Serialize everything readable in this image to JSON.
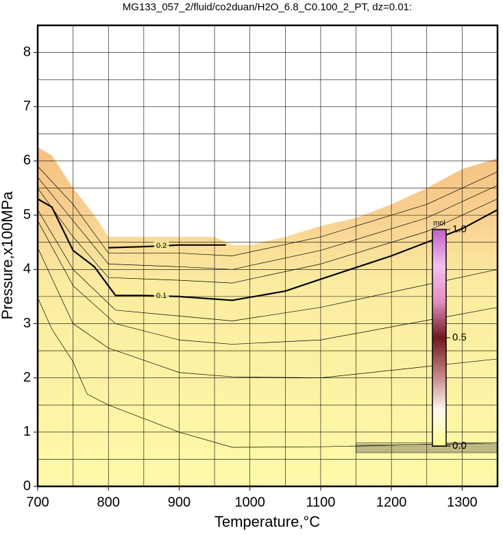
{
  "chart_data": {
    "type": "contour",
    "title": "MG133_057_2/fluid/co2duan/H2O_6.8_C0.100_2_PT, dz=0.01:",
    "x_label": "Temperature,°C",
    "y_label": "Pressure,x100MPa",
    "xlim": [
      700,
      1350
    ],
    "ylim": [
      0,
      8.5
    ],
    "xticks": [
      700,
      800,
      900,
      1000,
      1100,
      1200,
      1300
    ],
    "yticks": [
      0,
      1,
      2,
      3,
      4,
      5,
      6,
      7,
      8
    ],
    "xgrid": [
      700,
      750,
      800,
      850,
      900,
      950,
      1000,
      1050,
      1100,
      1150,
      1200,
      1250,
      1300,
      1350
    ],
    "ygrid": [
      0,
      0.5,
      1,
      1.5,
      2,
      2.5,
      3,
      3.5,
      4,
      4.5,
      5,
      5.5,
      6,
      6.5,
      7,
      7.5,
      8,
      8.5
    ],
    "grid": true,
    "boundary": {
      "x": [
        700,
        720,
        750,
        780,
        800,
        850,
        900,
        950,
        975,
        1000,
        1050,
        1100,
        1150,
        1200,
        1250,
        1300,
        1350
      ],
      "y": [
        6.25,
        6.1,
        5.5,
        5.0,
        4.6,
        4.6,
        4.6,
        4.6,
        4.45,
        4.45,
        4.6,
        4.8,
        4.95,
        5.2,
        5.5,
        5.85,
        6.05
      ]
    },
    "series": [
      {
        "level": 0.1,
        "bold": true,
        "x": [
          700,
          720,
          750,
          780,
          810,
          850,
          900,
          975,
          1050,
          1100,
          1200,
          1300,
          1350
        ],
        "y": [
          5.3,
          5.15,
          4.35,
          4.05,
          3.52,
          3.52,
          3.5,
          3.43,
          3.6,
          3.82,
          4.25,
          4.75,
          5.1
        ]
      },
      {
        "level": 0.2,
        "bold": true,
        "x": [
          800,
          850,
          900,
          966
        ],
        "y": [
          4.4,
          4.42,
          4.45,
          4.45
        ]
      },
      {
        "x": [
          700,
          720,
          750,
          770,
          800,
          900,
          975,
          1100,
          1350
        ],
        "y": [
          3.48,
          2.9,
          2.3,
          1.7,
          1.5,
          1.0,
          0.72,
          0.73,
          0.8
        ]
      },
      {
        "x": [
          700,
          750,
          800,
          900,
          975,
          1100,
          1350
        ],
        "y": [
          4.4,
          3.0,
          2.55,
          2.1,
          2.02,
          2.0,
          2.35
        ]
      },
      {
        "x": [
          700,
          750,
          810,
          900,
          975,
          1100,
          1350
        ],
        "y": [
          4.9,
          3.7,
          3.0,
          2.7,
          2.62,
          2.7,
          3.3
        ]
      },
      {
        "x": [
          700,
          750,
          810,
          975,
          1100,
          1350
        ],
        "y": [
          5.1,
          4.0,
          3.25,
          3.05,
          3.3,
          4.0
        ]
      },
      {
        "x": [
          700,
          750,
          800,
          900,
          975,
          1100,
          1250,
          1350
        ],
        "y": [
          5.5,
          4.6,
          3.85,
          3.8,
          3.75,
          4.1,
          4.7,
          5.3
        ]
      },
      {
        "x": [
          700,
          750,
          800,
          900,
          975,
          1100,
          1250,
          1350
        ],
        "y": [
          5.7,
          4.9,
          4.1,
          4.05,
          4.0,
          4.35,
          4.95,
          5.55
        ]
      },
      {
        "x": [
          700,
          750,
          800,
          900,
          975,
          1100,
          1250,
          1350
        ],
        "y": [
          5.9,
          5.2,
          4.3,
          4.3,
          4.25,
          4.6,
          5.2,
          5.8
        ]
      }
    ],
    "colorbar": {
      "label": "mol",
      "lim": [
        0,
        1
      ],
      "ticks": [
        {
          "value": 0,
          "label": "0.0"
        },
        {
          "value": 0.5,
          "label": "0.5"
        },
        {
          "value": 1,
          "label": "1.0"
        }
      ],
      "colors": [
        "#ffff90",
        "#fff8f0",
        "#c08080",
        "#701820",
        "#e090c0",
        "#f4c0f0",
        "#c060c8"
      ]
    }
  }
}
